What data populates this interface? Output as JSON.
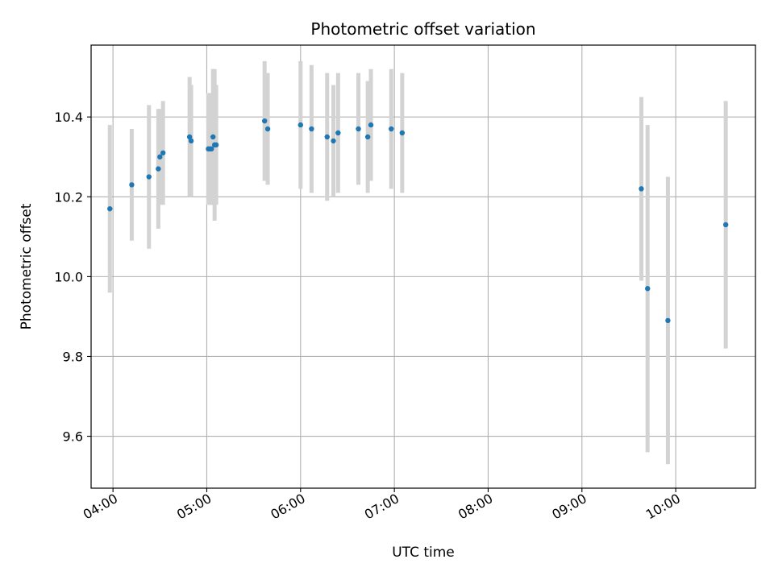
{
  "chart_data": {
    "type": "scatter",
    "title": "Photometric offset variation",
    "xlabel": "UTC time",
    "ylabel": "Photometric offset",
    "x_unit": "UTC time (HH:MM)",
    "xlim": [
      "03:46",
      "10:51"
    ],
    "ylim": [
      9.47,
      10.58
    ],
    "x_ticks": [
      "04:00",
      "05:00",
      "06:00",
      "07:00",
      "08:00",
      "09:00",
      "10:00"
    ],
    "y_ticks": [
      9.6,
      9.8,
      10.0,
      10.2,
      10.4
    ],
    "y_tick_labels": [
      "9.6",
      "9.8",
      "10.0",
      "10.2",
      "10.4"
    ],
    "grid": true,
    "colors": {
      "point": "#1f77b4",
      "errorbar": "#d3d3d3",
      "grid": "#b0b0b0"
    },
    "points": [
      {
        "t": "03:58",
        "y": 10.17,
        "err": 0.21
      },
      {
        "t": "04:12",
        "y": 10.23,
        "err": 0.14
      },
      {
        "t": "04:23",
        "y": 10.25,
        "err": 0.18
      },
      {
        "t": "04:29",
        "y": 10.27,
        "err": 0.15
      },
      {
        "t": "04:30",
        "y": 10.3,
        "err": 0.12
      },
      {
        "t": "04:32",
        "y": 10.31,
        "err": 0.13
      },
      {
        "t": "04:49",
        "y": 10.35,
        "err": 0.15
      },
      {
        "t": "04:50",
        "y": 10.34,
        "err": 0.14
      },
      {
        "t": "05:01",
        "y": 10.32,
        "err": 0.14
      },
      {
        "t": "05:02",
        "y": 10.32,
        "err": 0.14
      },
      {
        "t": "05:03",
        "y": 10.32,
        "err": 0.14
      },
      {
        "t": "05:04",
        "y": 10.35,
        "err": 0.17
      },
      {
        "t": "05:05",
        "y": 10.33,
        "err": 0.19
      },
      {
        "t": "05:06",
        "y": 10.33,
        "err": 0.15
      },
      {
        "t": "05:37",
        "y": 10.39,
        "err": 0.15
      },
      {
        "t": "05:39",
        "y": 10.37,
        "err": 0.14
      },
      {
        "t": "06:00",
        "y": 10.38,
        "err": 0.16
      },
      {
        "t": "06:07",
        "y": 10.37,
        "err": 0.16
      },
      {
        "t": "06:17",
        "y": 10.35,
        "err": 0.16
      },
      {
        "t": "06:21",
        "y": 10.34,
        "err": 0.14
      },
      {
        "t": "06:24",
        "y": 10.36,
        "err": 0.15
      },
      {
        "t": "06:37",
        "y": 10.37,
        "err": 0.14
      },
      {
        "t": "06:43",
        "y": 10.35,
        "err": 0.14
      },
      {
        "t": "06:45",
        "y": 10.38,
        "err": 0.14
      },
      {
        "t": "06:58",
        "y": 10.37,
        "err": 0.15
      },
      {
        "t": "07:05",
        "y": 10.36,
        "err": 0.15
      },
      {
        "t": "09:38",
        "y": 10.22,
        "err": 0.23
      },
      {
        "t": "09:42",
        "y": 9.97,
        "err": 0.41
      },
      {
        "t": "09:55",
        "y": 9.89,
        "err": 0.36
      },
      {
        "t": "10:32",
        "y": 10.13,
        "err": 0.31
      }
    ]
  }
}
